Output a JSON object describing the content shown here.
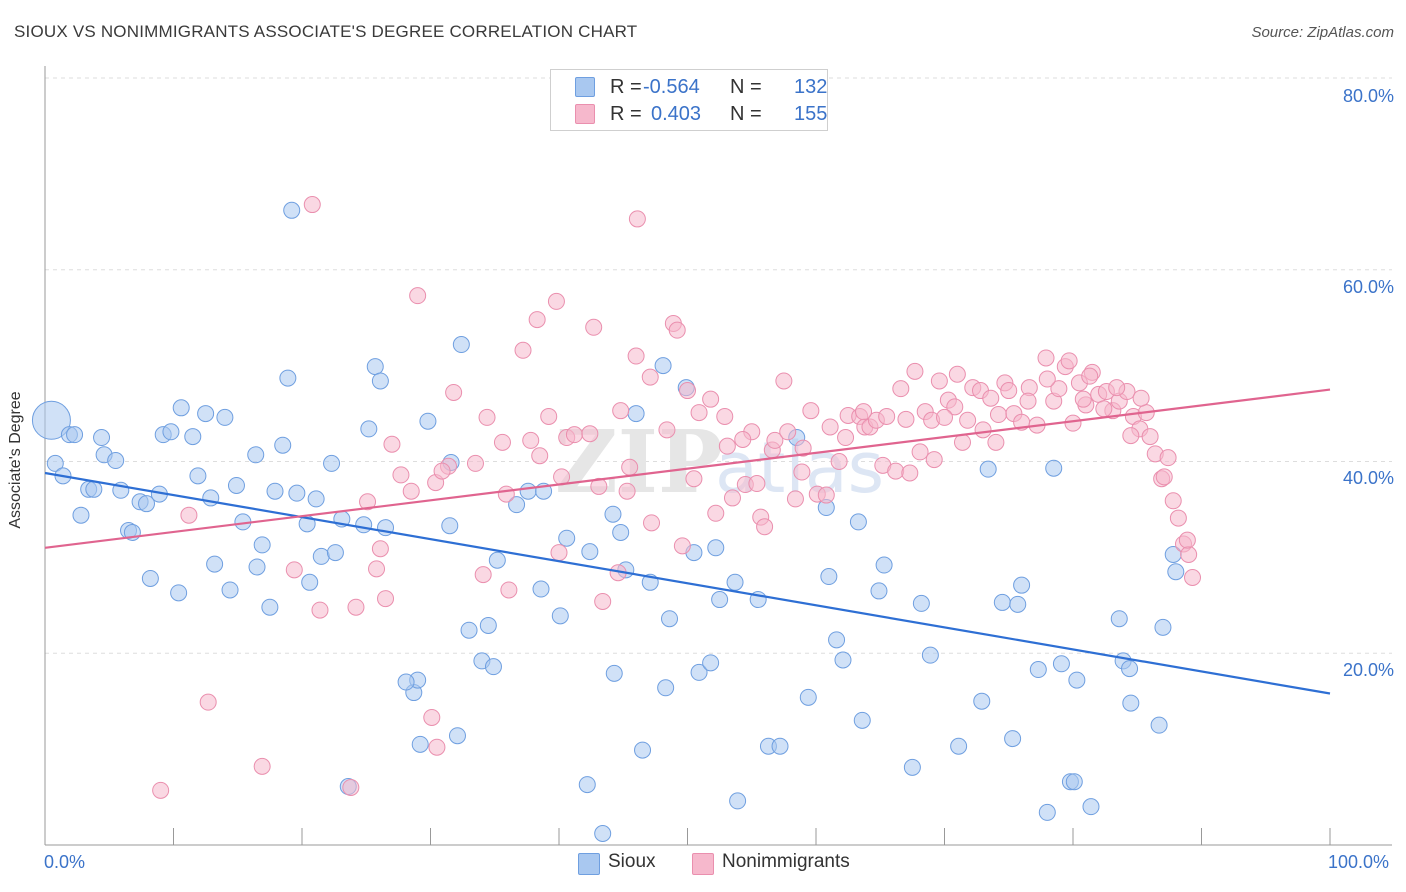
{
  "header": {
    "title": "SIOUX VS NONIMMIGRANTS ASSOCIATE'S DEGREE CORRELATION CHART",
    "source": "Source: ZipAtlas.com"
  },
  "legend_top": {
    "rows": [
      {
        "r_label": "R =",
        "r_value": "-0.564",
        "n_label": "N =",
        "n_value": "132"
      },
      {
        "r_label": "R =",
        "r_value": "0.403",
        "n_label": "N =",
        "n_value": "155"
      }
    ]
  },
  "colors": {
    "sioux_fill": "#a9c8f0",
    "sioux_stroke": "#6f9fe0",
    "sioux_line": "#2e6fd4",
    "nonimm_fill": "#f6b8cc",
    "nonimm_stroke": "#ea8fae",
    "nonimm_line": "#e0648f",
    "tick_text": "#3b73c9",
    "grid": "#dddddd"
  },
  "chart_data": {
    "type": "scatter",
    "title": "SIOUX VS NONIMMIGRANTS ASSOCIATE'S DEGREE CORRELATION CHART",
    "xlabel": "",
    "ylabel": "Associate's Degree",
    "xlim": [
      0,
      100
    ],
    "ylim": [
      0,
      80
    ],
    "x_tick_labels": [
      "0.0%",
      "100.0%"
    ],
    "y_tick_labels": [
      "20.0%",
      "40.0%",
      "60.0%",
      "80.0%"
    ],
    "y_ticks": [
      20,
      40,
      60,
      80
    ],
    "grid": true,
    "legend_placement": "bottom",
    "series": [
      {
        "name": "Sioux",
        "r": -0.564,
        "n": 132,
        "trend": {
          "x": [
            0,
            100
          ],
          "y": [
            38.8,
            15.8
          ]
        },
        "points": [
          [
            0.5,
            44.3
          ],
          [
            0.8,
            39.8
          ],
          [
            1.4,
            38.5
          ],
          [
            1.9,
            42.8
          ],
          [
            2.3,
            42.8
          ],
          [
            2.8,
            34.4
          ],
          [
            3.4,
            37.1
          ],
          [
            3.8,
            37.1
          ],
          [
            4.4,
            42.5
          ],
          [
            4.6,
            40.7
          ],
          [
            5.5,
            40.1
          ],
          [
            5.9,
            37.0
          ],
          [
            6.5,
            32.8
          ],
          [
            6.8,
            32.6
          ],
          [
            7.4,
            35.8
          ],
          [
            7.9,
            35.6
          ],
          [
            8.2,
            27.8
          ],
          [
            8.9,
            36.6
          ],
          [
            9.2,
            42.8
          ],
          [
            9.8,
            43.1
          ],
          [
            10.4,
            26.3
          ],
          [
            10.6,
            45.6
          ],
          [
            11.5,
            42.6
          ],
          [
            11.9,
            38.5
          ],
          [
            12.5,
            45.0
          ],
          [
            12.9,
            36.2
          ],
          [
            13.2,
            29.3
          ],
          [
            14.0,
            44.6
          ],
          [
            14.4,
            26.6
          ],
          [
            14.9,
            37.5
          ],
          [
            15.4,
            33.7
          ],
          [
            16.4,
            40.7
          ],
          [
            16.5,
            29.0
          ],
          [
            16.9,
            31.3
          ],
          [
            17.5,
            24.8
          ],
          [
            17.9,
            36.9
          ],
          [
            18.5,
            41.7
          ],
          [
            18.9,
            48.7
          ],
          [
            19.2,
            66.2
          ],
          [
            19.6,
            36.7
          ],
          [
            20.4,
            33.5
          ],
          [
            20.6,
            27.4
          ],
          [
            21.1,
            36.1
          ],
          [
            21.5,
            30.1
          ],
          [
            22.3,
            39.8
          ],
          [
            22.6,
            30.5
          ],
          [
            23.1,
            34.0
          ],
          [
            23.6,
            6.1
          ],
          [
            24.8,
            33.4
          ],
          [
            25.2,
            43.4
          ],
          [
            25.7,
            49.9
          ],
          [
            26.1,
            48.4
          ],
          [
            26.5,
            33.1
          ],
          [
            28.7,
            15.9
          ],
          [
            29.0,
            17.2
          ],
          [
            29.2,
            10.5
          ],
          [
            29.8,
            44.2
          ],
          [
            31.5,
            33.3
          ],
          [
            31.6,
            39.9
          ],
          [
            32.1,
            11.4
          ],
          [
            32.4,
            52.2
          ],
          [
            33.0,
            22.4
          ],
          [
            34.0,
            19.2
          ],
          [
            34.5,
            22.9
          ],
          [
            34.9,
            18.6
          ],
          [
            35.2,
            29.7
          ],
          [
            36.7,
            35.5
          ],
          [
            37.6,
            36.9
          ],
          [
            38.6,
            26.7
          ],
          [
            38.8,
            36.9
          ],
          [
            40.1,
            23.9
          ],
          [
            40.6,
            32.0
          ],
          [
            42.2,
            6.3
          ],
          [
            42.4,
            30.6
          ],
          [
            43.4,
            1.2
          ],
          [
            44.2,
            34.5
          ],
          [
            44.3,
            17.9
          ],
          [
            44.8,
            32.6
          ],
          [
            45.2,
            28.7
          ],
          [
            46.5,
            9.9
          ],
          [
            47.1,
            27.4
          ],
          [
            48.1,
            50.0
          ],
          [
            48.3,
            16.4
          ],
          [
            48.6,
            23.6
          ],
          [
            49.9,
            47.7
          ],
          [
            50.5,
            30.5
          ],
          [
            50.9,
            18.0
          ],
          [
            51.8,
            19.0
          ],
          [
            52.2,
            31.0
          ],
          [
            52.5,
            25.6
          ],
          [
            53.7,
            27.4
          ],
          [
            53.9,
            4.6
          ],
          [
            55.5,
            25.6
          ],
          [
            56.3,
            10.3
          ],
          [
            57.2,
            10.3
          ],
          [
            58.5,
            42.5
          ],
          [
            59.4,
            15.4
          ],
          [
            60.8,
            35.2
          ],
          [
            61.0,
            28.0
          ],
          [
            61.6,
            21.4
          ],
          [
            62.1,
            19.3
          ],
          [
            63.3,
            33.7
          ],
          [
            63.6,
            13.0
          ],
          [
            64.9,
            26.5
          ],
          [
            65.3,
            29.2
          ],
          [
            67.5,
            8.1
          ],
          [
            68.2,
            25.2
          ],
          [
            68.9,
            19.8
          ],
          [
            71.1,
            10.3
          ],
          [
            72.9,
            15.0
          ],
          [
            73.4,
            39.2
          ],
          [
            74.5,
            25.3
          ],
          [
            75.3,
            11.1
          ],
          [
            75.7,
            25.1
          ],
          [
            76.0,
            27.1
          ],
          [
            77.3,
            18.3
          ],
          [
            78.0,
            3.4
          ],
          [
            78.5,
            39.3
          ],
          [
            79.1,
            18.9
          ],
          [
            79.8,
            6.6
          ],
          [
            80.1,
            6.6
          ],
          [
            80.3,
            17.2
          ],
          [
            81.4,
            4.0
          ],
          [
            83.6,
            23.6
          ],
          [
            83.9,
            19.2
          ],
          [
            84.4,
            18.4
          ],
          [
            84.5,
            14.8
          ],
          [
            86.7,
            12.5
          ],
          [
            87.0,
            22.7
          ],
          [
            87.8,
            30.3
          ],
          [
            88.0,
            28.5
          ],
          [
            28.1,
            17.0
          ],
          [
            46.0,
            45.0
          ]
        ]
      },
      {
        "name": "Nonimmigrants",
        "r": 0.403,
        "n": 155,
        "trend": {
          "x": [
            0,
            100
          ],
          "y": [
            31.0,
            47.5
          ]
        },
        "points": [
          [
            9.0,
            5.7
          ],
          [
            11.2,
            34.4
          ],
          [
            12.7,
            14.9
          ],
          [
            16.9,
            8.2
          ],
          [
            19.4,
            28.7
          ],
          [
            20.8,
            66.8
          ],
          [
            21.4,
            24.5
          ],
          [
            23.8,
            6.0
          ],
          [
            24.2,
            24.8
          ],
          [
            25.1,
            35.8
          ],
          [
            25.8,
            28.8
          ],
          [
            26.1,
            30.9
          ],
          [
            26.5,
            25.7
          ],
          [
            27.0,
            41.8
          ],
          [
            27.7,
            38.6
          ],
          [
            28.5,
            36.9
          ],
          [
            29.0,
            57.3
          ],
          [
            30.1,
            13.3
          ],
          [
            30.4,
            37.8
          ],
          [
            30.5,
            10.2
          ],
          [
            31.4,
            39.5
          ],
          [
            31.8,
            47.2
          ],
          [
            34.1,
            28.2
          ],
          [
            34.4,
            44.6
          ],
          [
            35.6,
            42.0
          ],
          [
            35.9,
            36.6
          ],
          [
            37.2,
            51.6
          ],
          [
            38.3,
            54.8
          ],
          [
            38.5,
            40.6
          ],
          [
            39.2,
            44.7
          ],
          [
            39.8,
            56.7
          ],
          [
            40.2,
            38.4
          ],
          [
            40.6,
            42.5
          ],
          [
            41.2,
            42.8
          ],
          [
            42.4,
            42.9
          ],
          [
            42.7,
            54.0
          ],
          [
            43.1,
            37.4
          ],
          [
            43.4,
            25.4
          ],
          [
            44.8,
            45.3
          ],
          [
            45.3,
            36.9
          ],
          [
            45.5,
            39.4
          ],
          [
            46.0,
            51.0
          ],
          [
            46.1,
            65.3
          ],
          [
            47.1,
            48.8
          ],
          [
            47.2,
            33.6
          ],
          [
            48.4,
            43.3
          ],
          [
            48.9,
            54.4
          ],
          [
            49.2,
            53.7
          ],
          [
            50.0,
            47.4
          ],
          [
            50.5,
            38.2
          ],
          [
            50.9,
            45.1
          ],
          [
            51.8,
            46.5
          ],
          [
            52.2,
            34.6
          ],
          [
            53.1,
            41.6
          ],
          [
            53.5,
            36.2
          ],
          [
            54.5,
            37.6
          ],
          [
            55.0,
            43.1
          ],
          [
            55.4,
            37.7
          ],
          [
            55.7,
            34.2
          ],
          [
            56.0,
            33.2
          ],
          [
            56.6,
            41.2
          ],
          [
            56.8,
            42.2
          ],
          [
            57.5,
            48.4
          ],
          [
            57.8,
            43.1
          ],
          [
            58.4,
            36.1
          ],
          [
            59.0,
            41.4
          ],
          [
            59.6,
            45.3
          ],
          [
            60.1,
            36.6
          ],
          [
            60.8,
            36.5
          ],
          [
            61.8,
            40.0
          ],
          [
            62.3,
            42.5
          ],
          [
            62.5,
            44.8
          ],
          [
            63.4,
            44.7
          ],
          [
            63.8,
            43.6
          ],
          [
            64.2,
            43.6
          ],
          [
            64.7,
            44.3
          ],
          [
            65.2,
            39.6
          ],
          [
            66.2,
            39.0
          ],
          [
            67.3,
            38.8
          ],
          [
            67.7,
            49.4
          ],
          [
            68.1,
            41.0
          ],
          [
            68.5,
            45.2
          ],
          [
            69.0,
            44.3
          ],
          [
            69.2,
            40.2
          ],
          [
            69.6,
            48.4
          ],
          [
            70.3,
            46.4
          ],
          [
            70.8,
            45.7
          ],
          [
            71.4,
            42.0
          ],
          [
            71.8,
            44.3
          ],
          [
            72.2,
            47.7
          ],
          [
            72.8,
            47.4
          ],
          [
            73.6,
            46.6
          ],
          [
            74.2,
            44.9
          ],
          [
            74.7,
            48.2
          ],
          [
            75.4,
            45.0
          ],
          [
            76.0,
            44.1
          ],
          [
            76.6,
            47.7
          ],
          [
            77.2,
            43.8
          ],
          [
            77.9,
            50.8
          ],
          [
            78.5,
            46.3
          ],
          [
            78.9,
            47.6
          ],
          [
            79.4,
            49.9
          ],
          [
            80.0,
            44.0
          ],
          [
            80.5,
            48.2
          ],
          [
            81.0,
            45.9
          ],
          [
            81.5,
            49.3
          ],
          [
            82.0,
            47.0
          ],
          [
            82.6,
            47.3
          ],
          [
            83.1,
            45.3
          ],
          [
            83.6,
            46.3
          ],
          [
            84.2,
            47.3
          ],
          [
            84.7,
            44.7
          ],
          [
            85.2,
            43.4
          ],
          [
            85.7,
            45.1
          ],
          [
            86.0,
            42.6
          ],
          [
            86.4,
            40.8
          ],
          [
            86.9,
            38.2
          ],
          [
            87.4,
            40.4
          ],
          [
            87.8,
            35.9
          ],
          [
            88.2,
            34.1
          ],
          [
            88.6,
            31.4
          ],
          [
            89.0,
            30.3
          ],
          [
            89.3,
            27.9
          ],
          [
            63.7,
            45.2
          ],
          [
            65.5,
            44.7
          ],
          [
            67.0,
            44.4
          ],
          [
            71.0,
            49.1
          ],
          [
            73.0,
            43.3
          ],
          [
            75.0,
            47.4
          ],
          [
            76.5,
            46.3
          ],
          [
            78.0,
            48.6
          ],
          [
            79.7,
            50.5
          ],
          [
            81.3,
            48.9
          ],
          [
            82.4,
            45.5
          ],
          [
            83.4,
            47.7
          ],
          [
            84.5,
            42.7
          ],
          [
            85.3,
            46.6
          ],
          [
            87.1,
            38.4
          ],
          [
            88.9,
            31.8
          ],
          [
            30.9,
            39.0
          ],
          [
            33.5,
            39.8
          ],
          [
            36.1,
            26.6
          ],
          [
            37.8,
            42.2
          ],
          [
            40.0,
            30.5
          ],
          [
            44.6,
            28.4
          ],
          [
            49.6,
            31.2
          ],
          [
            52.9,
            44.7
          ],
          [
            54.3,
            42.3
          ],
          [
            58.9,
            38.9
          ],
          [
            61.1,
            43.6
          ],
          [
            66.6,
            47.6
          ],
          [
            70.0,
            44.6
          ],
          [
            74.0,
            42.0
          ],
          [
            80.8,
            46.5
          ]
        ]
      }
    ]
  },
  "bottom_legend": {
    "items": [
      {
        "label": "Sioux"
      },
      {
        "label": "Nonimmigrants"
      }
    ]
  },
  "watermark": "ZIPatlas"
}
